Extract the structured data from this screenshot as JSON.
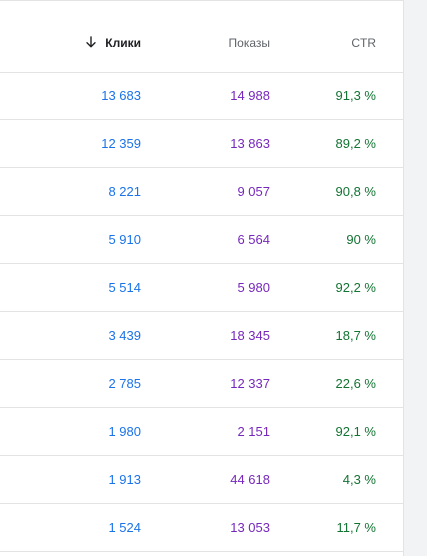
{
  "table": {
    "headers": {
      "clicks": "Клики",
      "impressions": "Показы",
      "ctr": "CTR"
    },
    "sort": {
      "column": "clicks",
      "direction": "desc",
      "icon": "arrow-down-icon"
    },
    "colors": {
      "clicks": "#1a73e8",
      "impressions": "#7627bb",
      "ctr": "#137333"
    },
    "rows": [
      {
        "clicks": "13 683",
        "impressions": "14 988",
        "ctr": "91,3 %"
      },
      {
        "clicks": "12 359",
        "impressions": "13 863",
        "ctr": "89,2 %"
      },
      {
        "clicks": "8 221",
        "impressions": "9 057",
        "ctr": "90,8 %"
      },
      {
        "clicks": "5 910",
        "impressions": "6 564",
        "ctr": "90 %"
      },
      {
        "clicks": "5 514",
        "impressions": "5 980",
        "ctr": "92,2 %"
      },
      {
        "clicks": "3 439",
        "impressions": "18 345",
        "ctr": "18,7 %"
      },
      {
        "clicks": "2 785",
        "impressions": "12 337",
        "ctr": "22,6 %"
      },
      {
        "clicks": "1 980",
        "impressions": "2 151",
        "ctr": "92,1 %"
      },
      {
        "clicks": "1 913",
        "impressions": "44 618",
        "ctr": "4,3 %"
      },
      {
        "clicks": "1 524",
        "impressions": "13 053",
        "ctr": "11,7 %"
      }
    ]
  }
}
